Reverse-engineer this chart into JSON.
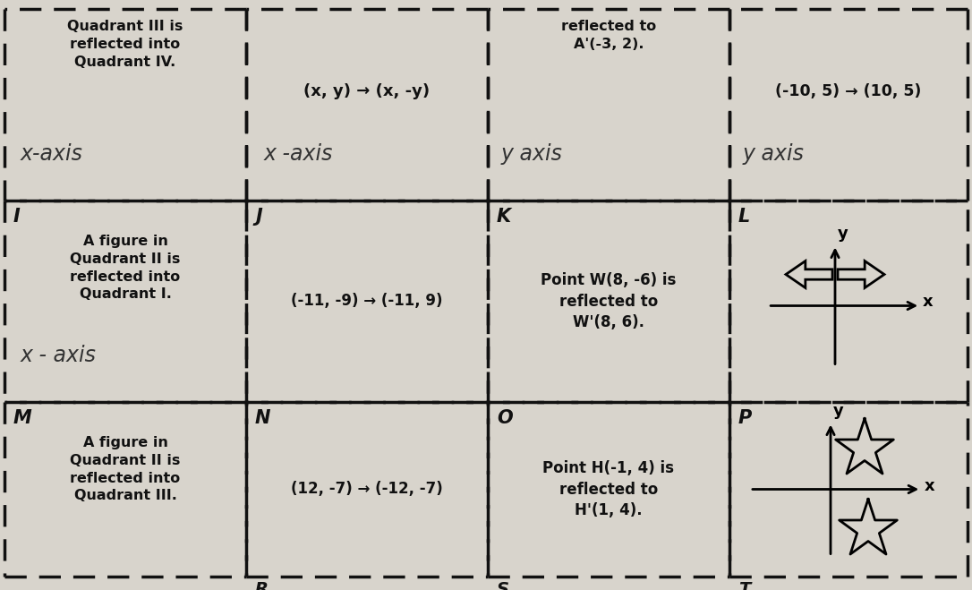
{
  "bg_color": "#d8d4cc",
  "text_color": "#111111",
  "dash_color": "#111111",
  "col_lefts": [
    5,
    275,
    545,
    815
  ],
  "col_rights": [
    275,
    545,
    815,
    1081
  ],
  "row_tops": [
    649,
    435,
    210,
    15
  ],
  "row_bottoms": [
    435,
    210,
    15,
    0
  ],
  "row0_col0_main": "Quadrant III is\nreflected into\nQuadrant IV.",
  "row0_col0_hw": "x-axis",
  "row0_col1_main": "(x, y) → (x, -y)",
  "row0_col1_hw": "x -axis",
  "row0_col2_main": "reflected to\nA'(-3, 2).",
  "row0_col2_hw": "y axis",
  "row0_col3_main": "(-10, 5) → (10, 5)",
  "row0_col3_hw": "y axis",
  "row1_labels": [
    "I",
    "J",
    "K",
    "L"
  ],
  "row1_col0_main": "A figure in\nQuadrant II is\nreflected into\nQuadrant I.",
  "row1_col0_hw": "x - axis",
  "row1_col1_main": "(-11, -9) → (-11, 9)",
  "row1_col2_main": "Point W(8, -6) is\nreflected to\nW'(8, 6).",
  "row2_labels": [
    "M",
    "N",
    "O",
    "P"
  ],
  "row2_col0_main": "A figure in\nQuadrant II is\nreflected into\nQuadrant III.",
  "row2_col1_main": "(12, -7) → (-12, -7)",
  "row2_col2_main": "Point H(-1, 4) is\nreflected to\nH'(1, 4).",
  "bottom_labels": [
    "",
    "R",
    "S",
    "T"
  ]
}
